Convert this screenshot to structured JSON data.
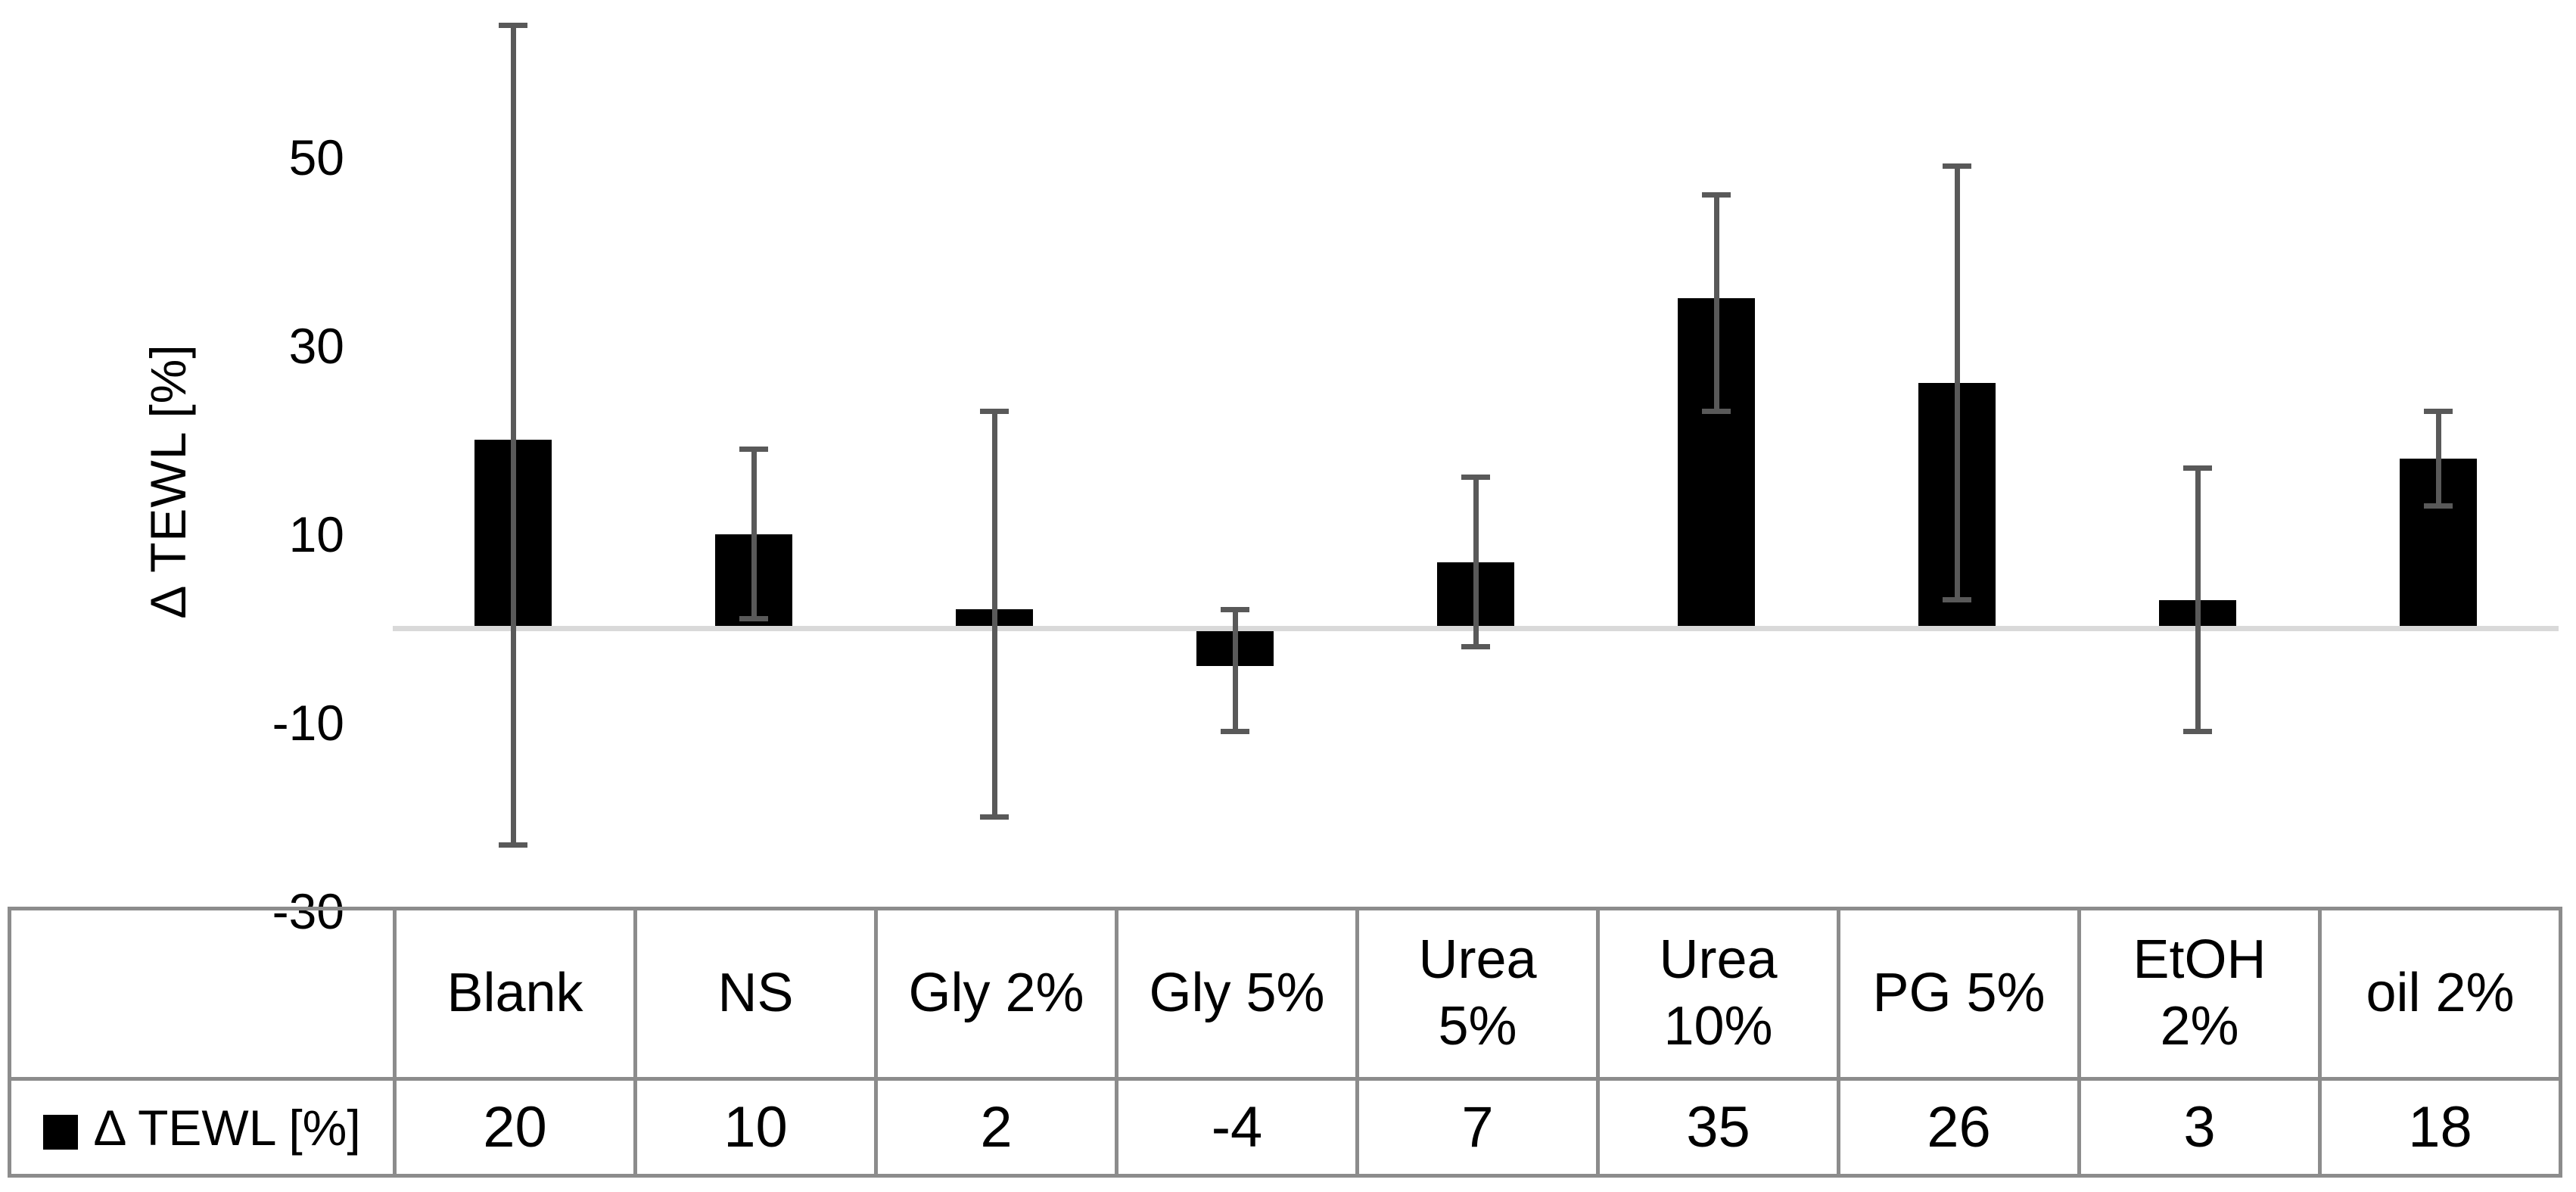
{
  "chart_data": {
    "type": "bar",
    "title": "",
    "xlabel": "",
    "ylabel": "Δ TEWL [%]",
    "categories": [
      "Blank",
      "NS",
      "Gly 2%",
      "Gly 5%",
      "Urea 5%",
      "Urea 10%",
      "PG 5%",
      "EtOH 2%",
      "oil 2%"
    ],
    "series": [
      {
        "name": "Δ TEWL [%]",
        "values": [
          20,
          10,
          2,
          -4,
          7,
          35,
          26,
          3,
          18
        ],
        "error_bar_top": [
          64,
          19,
          23,
          2,
          16,
          46,
          49,
          17,
          23
        ],
        "error_bar_bottom": [
          -23,
          1,
          -20,
          -11,
          -2,
          23,
          3,
          -11,
          13
        ]
      }
    ],
    "y_ticks": [
      50,
      30,
      10,
      -10,
      -30
    ],
    "ylim": [
      -30,
      67
    ],
    "grid": false,
    "legend_position": "bottom-table-left",
    "bar_color": "#000000",
    "error_bar_color": "#595959",
    "baseline_color": "#d9d9d9"
  },
  "table": {
    "legend_label": "Δ TEWL [%]",
    "headers": [
      "Blank",
      "NS",
      "Gly 2%",
      "Gly 5%",
      "Urea\n5%",
      "Urea\n10%",
      "PG 5%",
      "EtOH\n2%",
      "oil 2%"
    ],
    "values": [
      "20",
      "10",
      "2",
      "-4",
      "7",
      "35",
      "26",
      "3",
      "18"
    ],
    "border_color": "#8c8c8c"
  }
}
